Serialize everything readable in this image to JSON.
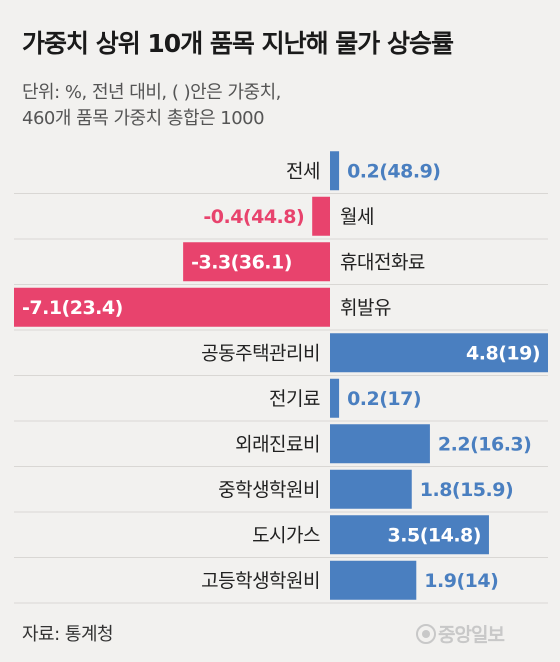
{
  "header": {
    "title": "가중치 상위 10개 품목 지난해 물가 상승률",
    "subtitle_line1": "단위: %, 전년 대비, ( )안은 가중치,",
    "subtitle_line2": "460개 품목 가중치 총합은 1000"
  },
  "footer": {
    "source": "자료: 통계청",
    "logo": "중앙일보"
  },
  "colors": {
    "positive": "#4a7fc0",
    "negative": "#e8436d",
    "positive_label": "#4a7fc0",
    "negative_label": "#e8436d",
    "category_label": "#222222",
    "divider": "#d9d7d4",
    "background": "#f2f1ef"
  },
  "chart_data": {
    "type": "bar",
    "orientation": "horizontal",
    "categories": [
      "전세",
      "월세",
      "휴대전화료",
      "휘발유",
      "공동주택관리비",
      "전기료",
      "외래진료비",
      "중학생학원비",
      "도시가스",
      "고등학생학원비"
    ],
    "values": [
      0.2,
      -0.4,
      -3.3,
      -7.1,
      4.8,
      0.2,
      2.2,
      1.8,
      3.5,
      1.9
    ],
    "weights": [
      48.9,
      44.8,
      36.1,
      23.4,
      19,
      17,
      16.3,
      15.9,
      14.8,
      14
    ],
    "data_labels": [
      "0.2(48.9)",
      "-0.4(44.8)",
      "-3.3(36.1)",
      "-7.1(23.4)",
      "4.8(19)",
      "0.2(17)",
      "2.2(16.3)",
      "1.8(15.9)",
      "3.5(14.8)",
      "1.9(14)"
    ],
    "xlim": [
      -7.1,
      4.8
    ],
    "grid": false,
    "legend": "none"
  }
}
